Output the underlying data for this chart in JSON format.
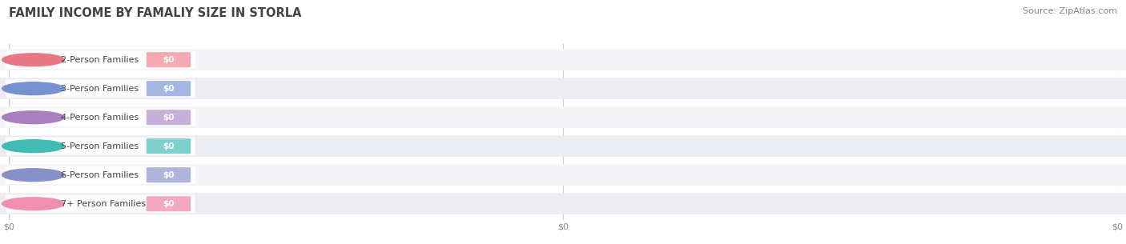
{
  "title": "FAMILY INCOME BY FAMALIY SIZE IN STORLA",
  "source": "Source: ZipAtlas.com",
  "categories": [
    "2-Person Families",
    "3-Person Families",
    "4-Person Families",
    "5-Person Families",
    "6-Person Families",
    "7+ Person Families"
  ],
  "values": [
    0,
    0,
    0,
    0,
    0,
    0
  ],
  "bar_colors": [
    "#f4a0a8",
    "#9ab0e0",
    "#c0a8d8",
    "#70ccc8",
    "#a8aed8",
    "#f4a0bc"
  ],
  "dot_colors": [
    "#e87888",
    "#7890d0",
    "#a880c0",
    "#40bcb4",
    "#8890c8",
    "#f090b0"
  ],
  "bar_bg_color": "#ebebf2",
  "row_bg_even": "#f5f5f9",
  "row_bg_odd": "#ececf3",
  "background_color": "#ffffff",
  "title_color": "#444444",
  "title_fontsize": 10.5,
  "label_fontsize": 8.0,
  "value_fontsize": 7.5,
  "source_fontsize": 8.0,
  "source_color": "#888888",
  "tick_label_color": "#888888",
  "tick_fontsize": 8.0,
  "x_tick_positions": [
    0.0,
    0.5,
    1.0
  ],
  "x_tick_labels": [
    "$0",
    "$0",
    "$0"
  ],
  "xlim": [
    0.0,
    1.0
  ],
  "grid_color": "#cccccc",
  "grid_linewidth": 0.8
}
